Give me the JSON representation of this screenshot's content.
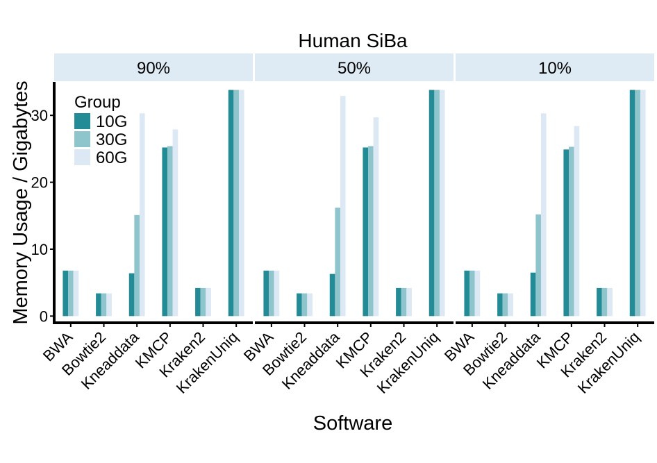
{
  "chart_data": {
    "type": "bar",
    "title": "Human SiBa",
    "xlabel": "Software",
    "ylabel": "Memory Usage / Gigabytes",
    "ylim": [
      -1,
      35
    ],
    "yticks": [
      0,
      10,
      20,
      30
    ],
    "grid": false,
    "legend": {
      "title": "Group",
      "placement": "top-left inside first panel",
      "entries": [
        "10G",
        "30G",
        "60G"
      ]
    },
    "categories": [
      "BWA",
      "Bowtie2",
      "Kneaddata",
      "KMCP",
      "Kraken2",
      "KrakenUniq"
    ],
    "colors": {
      "10G": "#228b96",
      "30G": "#8ec4cb",
      "60G": "#dce8f3",
      "strip": "#deebf4"
    },
    "facets": [
      {
        "label": "90%",
        "series": [
          {
            "name": "10G",
            "values": [
              6.8,
              3.4,
              6.4,
              25.2,
              4.2,
              33.8
            ]
          },
          {
            "name": "30G",
            "values": [
              6.8,
              3.4,
              15.1,
              25.4,
              4.2,
              33.8
            ]
          },
          {
            "name": "60G",
            "values": [
              6.8,
              3.4,
              30.3,
              27.9,
              4.2,
              33.8
            ]
          }
        ]
      },
      {
        "label": "50%",
        "series": [
          {
            "name": "10G",
            "values": [
              6.8,
              3.4,
              6.3,
              25.2,
              4.2,
              33.8
            ]
          },
          {
            "name": "30G",
            "values": [
              6.8,
              3.4,
              16.2,
              25.4,
              4.2,
              33.8
            ]
          },
          {
            "name": "60G",
            "values": [
              6.8,
              3.4,
              32.9,
              29.7,
              4.2,
              33.8
            ]
          }
        ]
      },
      {
        "label": "10%",
        "series": [
          {
            "name": "10G",
            "values": [
              6.8,
              3.4,
              6.5,
              24.9,
              4.2,
              33.8
            ]
          },
          {
            "name": "30G",
            "values": [
              6.8,
              3.4,
              15.2,
              25.3,
              4.2,
              33.8
            ]
          },
          {
            "name": "60G",
            "values": [
              6.8,
              3.4,
              30.3,
              28.4,
              4.2,
              33.8
            ]
          }
        ]
      }
    ]
  }
}
